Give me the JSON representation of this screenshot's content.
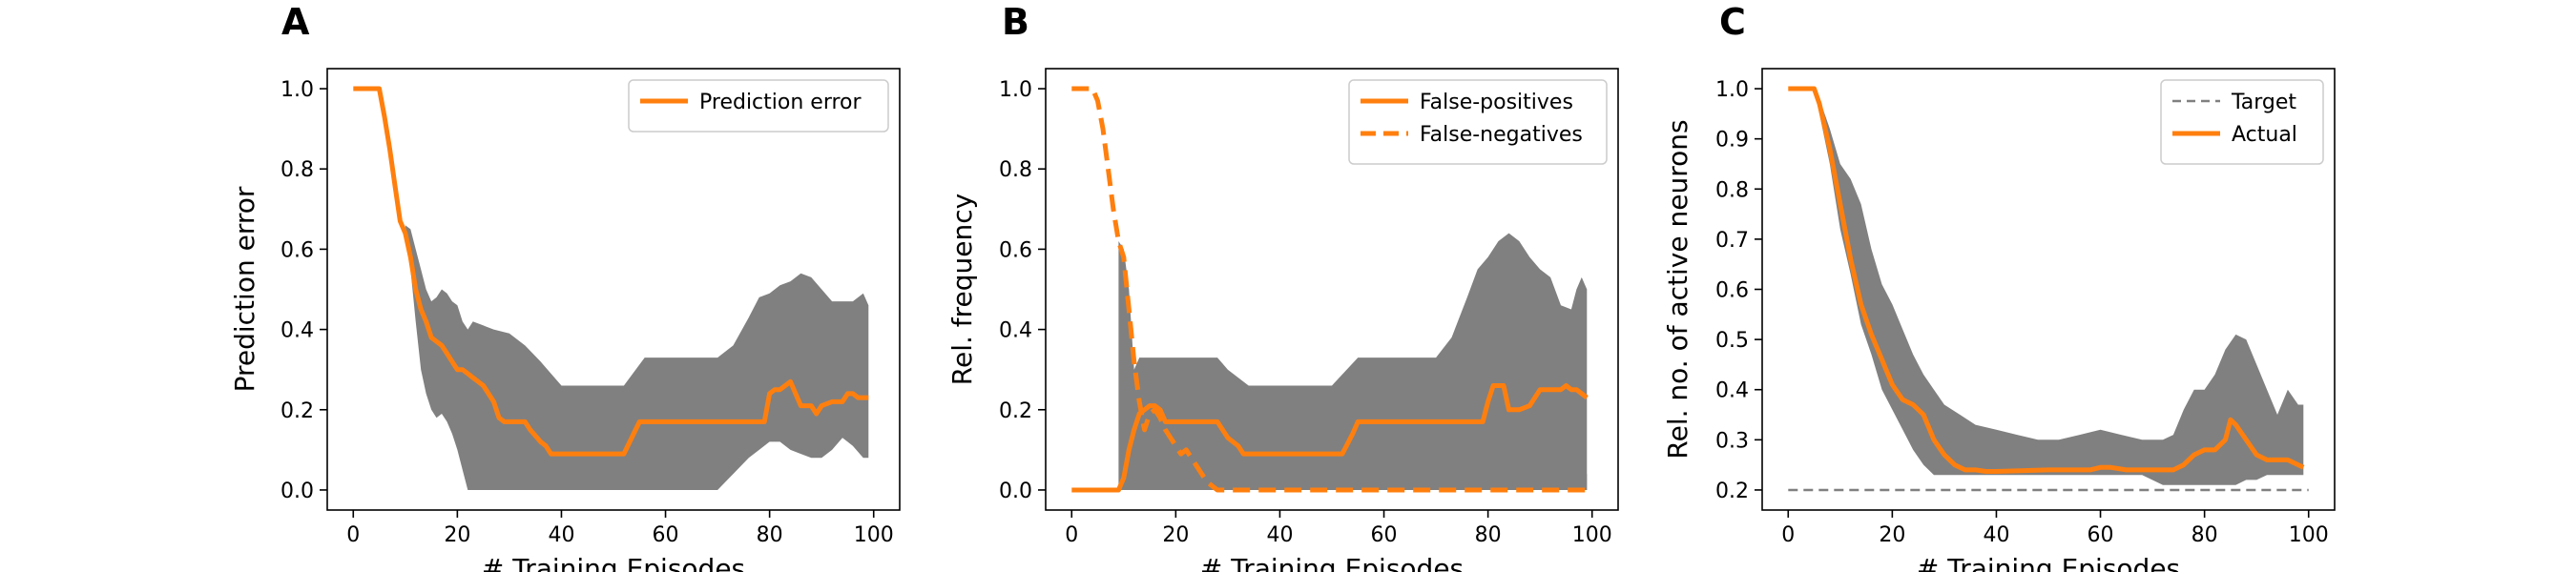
{
  "colors": {
    "line": "#ff7f0e",
    "band": "#808080",
    "target": "#808080"
  },
  "chart_data": [
    {
      "type": "line",
      "panel": "A",
      "xlabel": "# Training Episodes",
      "ylabel": "Prediction error",
      "xlim": [
        -5,
        105
      ],
      "ylim": [
        -0.05,
        1.05
      ],
      "xticks": [
        0,
        20,
        40,
        60,
        80,
        100
      ],
      "yticks": [
        0.0,
        0.2,
        0.4,
        0.6,
        0.8,
        1.0
      ],
      "legend": {
        "placement": "top-right"
      },
      "band": {
        "x": [
          10,
          11,
          12,
          13,
          14,
          15,
          16,
          17,
          18,
          19,
          20,
          21,
          22,
          23,
          25,
          27,
          30,
          33,
          36,
          38,
          40,
          42,
          44,
          48,
          52,
          56,
          60,
          65,
          70,
          73,
          76,
          78,
          80,
          82,
          84,
          86,
          88,
          90,
          92,
          94,
          96,
          98,
          99
        ],
        "upper": [
          0.66,
          0.65,
          0.6,
          0.55,
          0.5,
          0.47,
          0.48,
          0.5,
          0.49,
          0.47,
          0.46,
          0.42,
          0.4,
          0.42,
          0.41,
          0.4,
          0.39,
          0.36,
          0.32,
          0.29,
          0.26,
          0.26,
          0.26,
          0.26,
          0.26,
          0.33,
          0.33,
          0.33,
          0.33,
          0.36,
          0.43,
          0.48,
          0.49,
          0.51,
          0.52,
          0.54,
          0.53,
          0.5,
          0.47,
          0.47,
          0.47,
          0.49,
          0.46
        ],
        "lower": [
          0.66,
          0.55,
          0.42,
          0.3,
          0.24,
          0.2,
          0.18,
          0.19,
          0.17,
          0.14,
          0.1,
          0.05,
          0.0,
          0.0,
          0.0,
          0.0,
          0.0,
          0.0,
          0.0,
          0.0,
          0.0,
          0.0,
          0.0,
          0.0,
          0.0,
          0.0,
          0.0,
          0.0,
          0.0,
          0.04,
          0.08,
          0.1,
          0.12,
          0.12,
          0.1,
          0.09,
          0.08,
          0.08,
          0.1,
          0.13,
          0.11,
          0.08,
          0.08
        ]
      },
      "series": [
        {
          "name": "Prediction error",
          "style": "solid",
          "x": [
            0,
            5,
            6,
            7,
            8,
            9,
            10,
            11,
            12,
            13,
            14,
            15,
            16,
            17,
            18,
            19,
            20,
            21,
            22,
            23,
            24,
            25,
            27,
            28,
            29,
            30,
            33,
            34,
            36,
            37,
            38,
            40,
            52,
            55,
            70,
            79,
            80,
            81,
            82,
            83,
            84,
            85,
            86,
            87,
            88,
            89,
            90,
            92,
            94,
            95,
            96,
            97,
            98,
            99
          ],
          "y": [
            1.0,
            1.0,
            0.93,
            0.85,
            0.76,
            0.67,
            0.64,
            0.58,
            0.5,
            0.45,
            0.42,
            0.38,
            0.37,
            0.36,
            0.34,
            0.32,
            0.3,
            0.3,
            0.29,
            0.28,
            0.27,
            0.26,
            0.22,
            0.18,
            0.17,
            0.17,
            0.17,
            0.15,
            0.12,
            0.11,
            0.09,
            0.09,
            0.09,
            0.17,
            0.17,
            0.17,
            0.24,
            0.25,
            0.25,
            0.26,
            0.27,
            0.24,
            0.21,
            0.21,
            0.21,
            0.19,
            0.21,
            0.22,
            0.22,
            0.24,
            0.24,
            0.23,
            0.23,
            0.23
          ]
        }
      ]
    },
    {
      "type": "line",
      "panel": "B",
      "xlabel": "# Training Episodes",
      "ylabel": "Rel. frequency",
      "xlim": [
        -5,
        105
      ],
      "ylim": [
        -0.05,
        1.05
      ],
      "xticks": [
        0,
        20,
        40,
        60,
        80,
        100
      ],
      "yticks": [
        0.0,
        0.2,
        0.4,
        0.6,
        0.8,
        1.0
      ],
      "legend": {
        "placement": "top-right"
      },
      "band": {
        "x": [
          9,
          10,
          11,
          12,
          13,
          14,
          15,
          16,
          17,
          18,
          20,
          22,
          25,
          26,
          28,
          30,
          32,
          34,
          36,
          38,
          40,
          42,
          45,
          50,
          55,
          60,
          65,
          70,
          73,
          76,
          78,
          80,
          82,
          84,
          86,
          88,
          90,
          92,
          94,
          96,
          97,
          98,
          99
        ],
        "upper": [
          0.62,
          0.6,
          0.5,
          0.3,
          0.33,
          0.33,
          0.33,
          0.33,
          0.33,
          0.33,
          0.33,
          0.33,
          0.33,
          0.33,
          0.33,
          0.3,
          0.28,
          0.26,
          0.26,
          0.26,
          0.26,
          0.26,
          0.26,
          0.26,
          0.33,
          0.33,
          0.33,
          0.33,
          0.38,
          0.48,
          0.55,
          0.58,
          0.62,
          0.64,
          0.62,
          0.58,
          0.55,
          0.53,
          0.46,
          0.45,
          0.5,
          0.53,
          0.5
        ],
        "lower": [
          0.0,
          0.0,
          0.0,
          0.0,
          0.0,
          0.0,
          0.0,
          0.0,
          0.0,
          0.0,
          0.0,
          0.0,
          0.0,
          0.0,
          0.0,
          0.0,
          0.0,
          0.0,
          0.0,
          0.0,
          0.0,
          0.0,
          0.0,
          0.0,
          0.0,
          0.0,
          0.0,
          0.0,
          0.0,
          0.0,
          0.0,
          0.0,
          0.0,
          0.0,
          0.0,
          0.0,
          0.0,
          0.0,
          0.0,
          0.0,
          0.0,
          0.0,
          0.0
        ]
      },
      "band2": {
        "x": [
          76,
          78,
          80,
          82,
          84,
          86,
          88,
          90,
          92,
          94,
          96,
          98,
          99
        ],
        "upper": [
          0.0,
          0.03,
          0.05,
          0.07,
          0.05,
          0.07,
          0.04,
          0.07,
          0.05,
          0.08,
          0.05,
          0.03,
          0.04
        ],
        "lower": [
          0.0,
          0.0,
          0.0,
          0.0,
          0.0,
          0.0,
          0.0,
          0.0,
          0.0,
          0.0,
          0.0,
          0.0,
          0.0
        ]
      },
      "series": [
        {
          "name": "False-positives",
          "style": "solid",
          "x": [
            0,
            9,
            10,
            11,
            12,
            13,
            14,
            15,
            16,
            17,
            18,
            19,
            20,
            22,
            25,
            27,
            28,
            30,
            32,
            33,
            34,
            52,
            54,
            55,
            72,
            79,
            80,
            81,
            82,
            83,
            84,
            85,
            86,
            88,
            90,
            92,
            94,
            95,
            96,
            97,
            98,
            99
          ],
          "y": [
            0.0,
            0.0,
            0.03,
            0.1,
            0.15,
            0.19,
            0.2,
            0.21,
            0.21,
            0.2,
            0.17,
            0.17,
            0.17,
            0.17,
            0.17,
            0.17,
            0.17,
            0.13,
            0.11,
            0.09,
            0.09,
            0.09,
            0.14,
            0.17,
            0.17,
            0.17,
            0.22,
            0.26,
            0.26,
            0.26,
            0.2,
            0.2,
            0.2,
            0.21,
            0.25,
            0.25,
            0.25,
            0.26,
            0.25,
            0.25,
            0.24,
            0.23
          ]
        },
        {
          "name": "False-negatives",
          "style": "dashed",
          "x": [
            0,
            4,
            5,
            6,
            7,
            8,
            9,
            10,
            11,
            12,
            13,
            14,
            15,
            16,
            17,
            18,
            19,
            20,
            21,
            22,
            23,
            24,
            25,
            26,
            27,
            28,
            30,
            50,
            75,
            78,
            80,
            82,
            85,
            88,
            90,
            92,
            94,
            96,
            98,
            99
          ],
          "y": [
            1.0,
            1.0,
            0.97,
            0.9,
            0.8,
            0.7,
            0.62,
            0.58,
            0.45,
            0.32,
            0.22,
            0.15,
            0.19,
            0.2,
            0.18,
            0.15,
            0.13,
            0.11,
            0.09,
            0.1,
            0.08,
            0.06,
            0.04,
            0.02,
            0.01,
            0.0,
            0.0,
            0.0,
            0.0,
            0.0,
            0.0,
            0.0,
            0.0,
            0.0,
            0.0,
            0.0,
            0.0,
            0.0,
            0.0,
            0.0
          ]
        }
      ]
    },
    {
      "type": "line",
      "panel": "C",
      "xlabel": "# Training Episodes",
      "ylabel": "Rel. no. of active neurons",
      "xlim": [
        -5,
        105
      ],
      "ylim": [
        0.16,
        1.04
      ],
      "xticks": [
        0,
        20,
        40,
        60,
        80,
        100
      ],
      "yticks": [
        0.2,
        0.3,
        0.4,
        0.5,
        0.6,
        0.7,
        0.8,
        0.9,
        1.0
      ],
      "legend": {
        "placement": "top-right"
      },
      "band": {
        "x": [
          5,
          6,
          8,
          10,
          12,
          14,
          16,
          18,
          20,
          22,
          24,
          26,
          28,
          30,
          33,
          36,
          40,
          44,
          48,
          52,
          56,
          60,
          64,
          68,
          72,
          74,
          76,
          78,
          80,
          82,
          84,
          86,
          88,
          90,
          92,
          94,
          96,
          98,
          99
        ],
        "upper": [
          1.0,
          0.98,
          0.92,
          0.85,
          0.82,
          0.77,
          0.68,
          0.61,
          0.57,
          0.52,
          0.47,
          0.43,
          0.4,
          0.37,
          0.35,
          0.33,
          0.32,
          0.31,
          0.3,
          0.3,
          0.31,
          0.32,
          0.31,
          0.3,
          0.3,
          0.31,
          0.36,
          0.4,
          0.4,
          0.43,
          0.48,
          0.51,
          0.5,
          0.45,
          0.4,
          0.35,
          0.4,
          0.37,
          0.37
        ],
        "lower": [
          1.0,
          0.95,
          0.85,
          0.72,
          0.63,
          0.53,
          0.47,
          0.4,
          0.36,
          0.32,
          0.28,
          0.25,
          0.23,
          0.23,
          0.23,
          0.23,
          0.23,
          0.23,
          0.23,
          0.23,
          0.23,
          0.23,
          0.23,
          0.23,
          0.21,
          0.21,
          0.21,
          0.21,
          0.21,
          0.21,
          0.21,
          0.21,
          0.22,
          0.22,
          0.23,
          0.23,
          0.23,
          0.23,
          0.23
        ]
      },
      "series": [
        {
          "name": "Target",
          "style": "dashed-thin",
          "x": [
            0,
            100
          ],
          "y": [
            0.2,
            0.2
          ]
        },
        {
          "name": "Actual",
          "style": "solid",
          "x": [
            0,
            5,
            6,
            8,
            10,
            12,
            14,
            16,
            18,
            20,
            22,
            24,
            26,
            28,
            30,
            32,
            34,
            36,
            38,
            40,
            50,
            55,
            58,
            60,
            62,
            65,
            70,
            74,
            76,
            78,
            80,
            82,
            84,
            85,
            86,
            88,
            90,
            92,
            94,
            96,
            98,
            99
          ],
          "y": [
            1.0,
            1.0,
            0.97,
            0.88,
            0.77,
            0.66,
            0.57,
            0.51,
            0.46,
            0.41,
            0.38,
            0.37,
            0.35,
            0.3,
            0.27,
            0.25,
            0.24,
            0.24,
            0.237,
            0.237,
            0.24,
            0.24,
            0.24,
            0.245,
            0.245,
            0.24,
            0.24,
            0.24,
            0.25,
            0.27,
            0.28,
            0.28,
            0.3,
            0.34,
            0.33,
            0.3,
            0.27,
            0.26,
            0.26,
            0.26,
            0.25,
            0.245
          ]
        }
      ]
    }
  ]
}
